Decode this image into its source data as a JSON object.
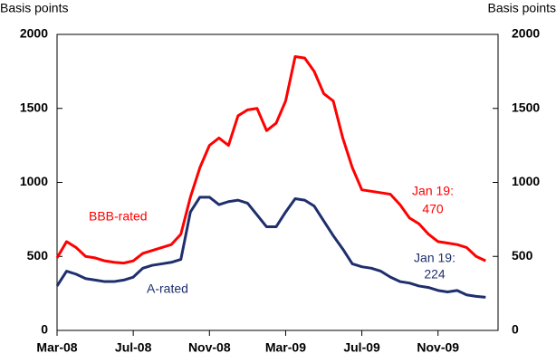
{
  "chart_data": {
    "type": "line",
    "y_label": "Basis points",
    "y2_label": "Basis points",
    "categories": [
      "Mar-08",
      null,
      null,
      null,
      null,
      null,
      null,
      null,
      "Jul-08",
      null,
      null,
      null,
      null,
      null,
      null,
      null,
      "Nov-08",
      null,
      null,
      null,
      null,
      null,
      null,
      null,
      "Mar-09",
      null,
      null,
      null,
      null,
      null,
      null,
      null,
      "Jul-09",
      null,
      null,
      null,
      null,
      null,
      null,
      null,
      "Nov-09",
      null,
      null,
      null,
      null,
      null
    ],
    "series": [
      {
        "name": "BBB-rated",
        "color": "#ff0000",
        "values": [
          490,
          600,
          560,
          500,
          490,
          470,
          460,
          455,
          470,
          520,
          540,
          560,
          580,
          650,
          900,
          1100,
          1250,
          1300,
          1250,
          1450,
          1490,
          1500,
          1350,
          1400,
          1550,
          1850,
          1840,
          1750,
          1600,
          1550,
          1300,
          1100,
          950,
          940,
          930,
          920,
          850,
          760,
          720,
          650,
          600,
          590,
          580,
          560,
          500,
          470
        ]
      },
      {
        "name": "A-rated",
        "color": "#1f2f6e",
        "values": [
          300,
          400,
          380,
          350,
          340,
          330,
          330,
          340,
          360,
          420,
          440,
          450,
          460,
          480,
          800,
          900,
          900,
          850,
          870,
          880,
          860,
          780,
          700,
          700,
          800,
          890,
          880,
          840,
          740,
          640,
          550,
          450,
          430,
          420,
          400,
          360,
          330,
          320,
          300,
          290,
          270,
          260,
          270,
          240,
          230,
          224
        ]
      }
    ],
    "annotations": [
      [
        "Jan 19:",
        "470"
      ],
      [
        "Jan 19:",
        "224"
      ]
    ],
    "ylim": [
      0,
      2000
    ],
    "yticks": [
      0,
      500,
      1000,
      1500,
      2000
    ],
    "y2lim": [
      0,
      2000
    ],
    "y2ticks": [
      0,
      500,
      1000,
      1500,
      2000
    ]
  }
}
